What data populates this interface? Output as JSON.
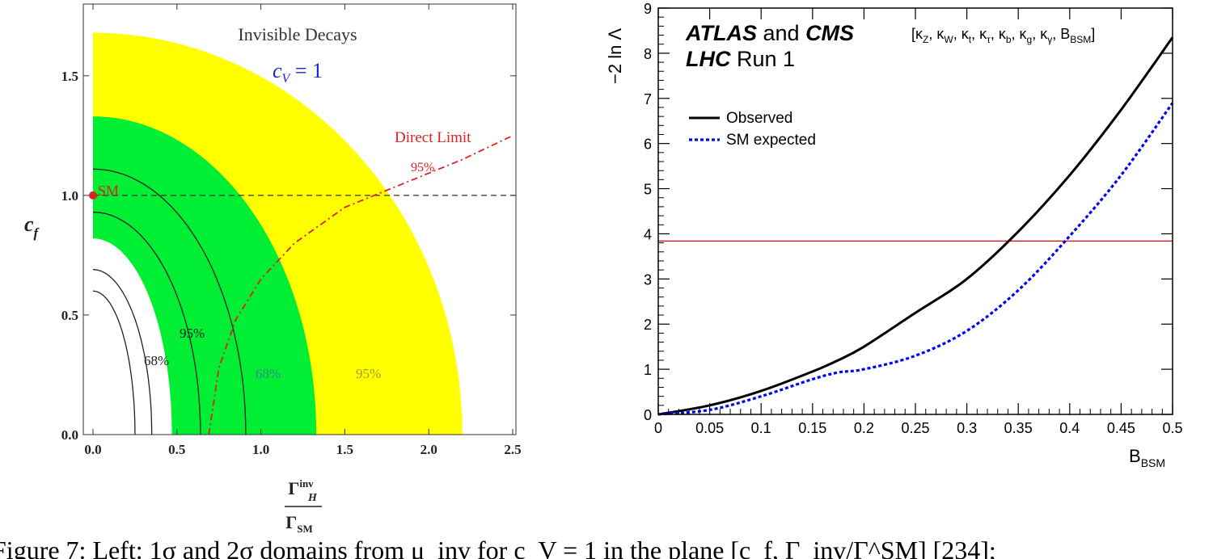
{
  "chart_data": [
    {
      "type": "area",
      "title": "Invisible Decays",
      "subtitle": "c_V = 1",
      "xlabel": "Γ_H^inv / Γ_SM",
      "xlabel_num": "Γ",
      "xlabel_num_sub": "H",
      "xlabel_num_sup": "inv",
      "xlabel_den": "Γ",
      "xlabel_den_sub": "SM",
      "ylabel": "c",
      "ylabel_sub": "f",
      "subtitle_c": "c",
      "subtitle_sub": "V",
      "subtitle_rest": " = 1",
      "xlim": [
        0,
        2.5
      ],
      "ylim": [
        0,
        1.8
      ],
      "xticks": [
        "0.0",
        "0.5",
        "1.0",
        "1.5",
        "2.0",
        "2.5"
      ],
      "yticks": [
        "0.0",
        "0.5",
        "1.0",
        "1.5"
      ],
      "sm_point": {
        "x": 0.0,
        "y": 1.0,
        "label": "SM"
      },
      "sm_line_y": 1.0,
      "bands": [
        {
          "name": "95%",
          "color": "#ffff00",
          "inner_radius": 0.47,
          "outer_radius": 2.2,
          "y_scale_note": "elliptical"
        },
        {
          "name": "68%",
          "color": "#00ee33",
          "inner_radius": 0.47,
          "outer_radius": 1.33
        }
      ],
      "contours": [
        {
          "name": "68%",
          "x_intercept": 0.25,
          "y_intercept": 0.6
        },
        {
          "name": "68%",
          "x_intercept": 0.35,
          "y_intercept": 0.69
        },
        {
          "name": "95%",
          "x_intercept": 0.64,
          "y_intercept": 0.93
        },
        {
          "name": "95%",
          "x_intercept": 0.91,
          "y_intercept": 1.11
        }
      ],
      "direct_limit": {
        "label": "Direct Limit",
        "sublabel": "95%",
        "color": "#dd2222",
        "points": [
          [
            0.69,
            0.0
          ],
          [
            0.75,
            0.28
          ],
          [
            0.85,
            0.48
          ],
          [
            1.0,
            0.65
          ],
          [
            1.2,
            0.8
          ],
          [
            1.5,
            0.95
          ],
          [
            1.85,
            1.05
          ],
          [
            2.2,
            1.15
          ],
          [
            2.5,
            1.25
          ]
        ]
      },
      "band_labels": [
        "68%",
        "95%",
        "68%",
        "95%"
      ]
    },
    {
      "type": "line",
      "annotation_atlas": "ATLAS",
      "annotation_and": " and ",
      "annotation_cms": "CMS",
      "annotation_lhc": "LHC",
      "annotation_run": " Run 1",
      "parameters": "[κ_Z, κ_W, κ_t, κ_τ, κ_b, κ_g, κ_γ, B_BSM]",
      "params_main": "[κ",
      "params_list": [
        {
          "base": "κ",
          "sub": "Z"
        },
        {
          "base": "κ",
          "sub": "W"
        },
        {
          "base": "κ",
          "sub": "t"
        },
        {
          "base": "κ",
          "sub": "τ"
        },
        {
          "base": "κ",
          "sub": "b"
        },
        {
          "base": "κ",
          "sub": "g"
        },
        {
          "base": "κ",
          "sub": "γ"
        },
        {
          "base": "B",
          "sub": "BSM"
        }
      ],
      "xlabel_base": "B",
      "xlabel_sub": "BSM",
      "ylabel": "−2 ln Λ",
      "xlim": [
        0,
        0.5
      ],
      "ylim": [
        0,
        9
      ],
      "xticks": [
        "0",
        "0.05",
        "0.1",
        "0.15",
        "0.2",
        "0.25",
        "0.3",
        "0.35",
        "0.4",
        "0.45",
        "0.5"
      ],
      "yticks": [
        "0",
        "1",
        "2",
        "3",
        "4",
        "5",
        "6",
        "7",
        "8",
        "9"
      ],
      "threshold_line": {
        "y": 3.84,
        "color": "#dd0000"
      },
      "legend_position": "top-left",
      "series": [
        {
          "name": "Observed",
          "color": "#000000",
          "style": "solid",
          "x": [
            0,
            0.05,
            0.1,
            0.15,
            0.175,
            0.2,
            0.25,
            0.3,
            0.35,
            0.4,
            0.45,
            0.5
          ],
          "y": [
            0,
            0.2,
            0.52,
            0.95,
            1.2,
            1.5,
            2.25,
            3.0,
            4.05,
            5.3,
            6.75,
            8.35
          ]
        },
        {
          "name": "SM expected",
          "color": "#0000ff",
          "style": "dotted",
          "x": [
            0,
            0.05,
            0.1,
            0.15,
            0.175,
            0.2,
            0.25,
            0.3,
            0.35,
            0.4,
            0.45,
            0.5
          ],
          "y": [
            0,
            0.1,
            0.4,
            0.78,
            0.93,
            1.0,
            1.3,
            1.85,
            2.75,
            3.95,
            5.3,
            6.9
          ]
        }
      ]
    }
  ],
  "caption": "Figure 7: Left: 1σ and 2σ domains from μ_inv for c_V = 1 in the plane [c_f, Γ_inv/Γ^SM] [234];"
}
